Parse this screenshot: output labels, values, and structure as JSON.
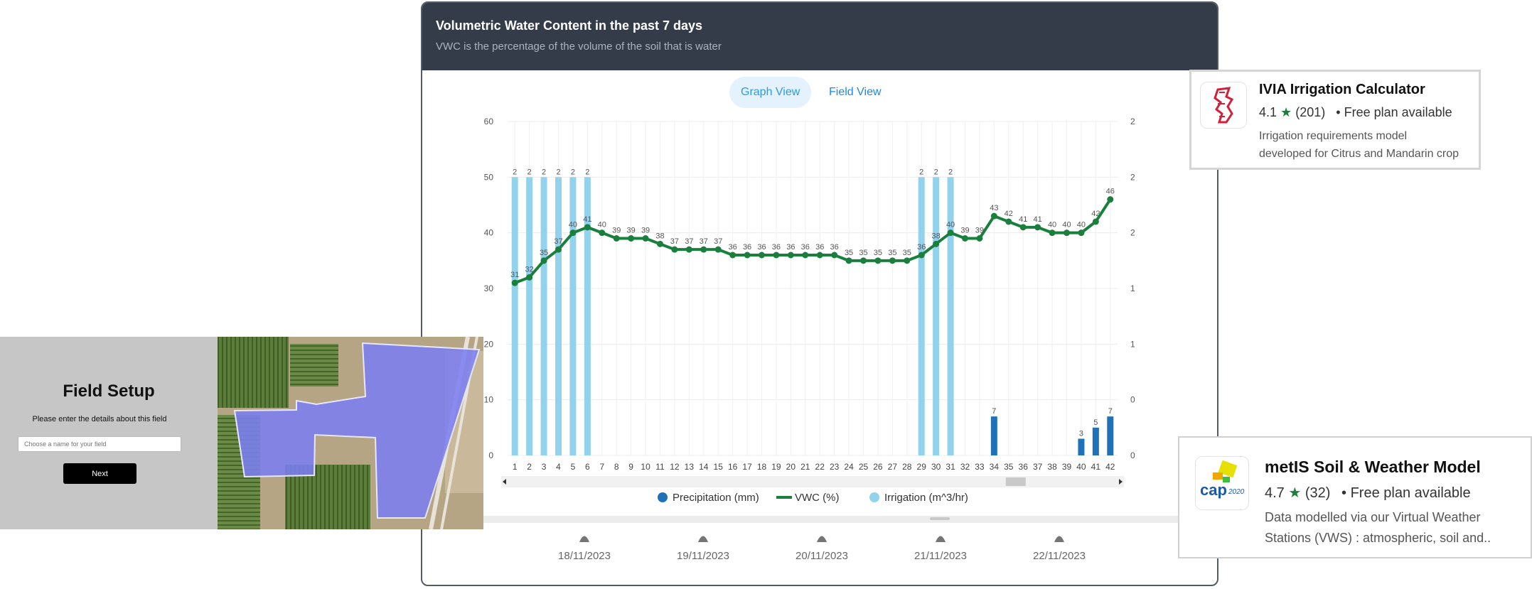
{
  "chart_panel": {
    "title": "Volumetric Water Content in the past 7 days",
    "subtitle": "VWC is the percentage of the volume of the soil that is water",
    "tabs": {
      "graph": "Graph View",
      "field": "Field View"
    }
  },
  "colors": {
    "header_bg": "#333c48",
    "vwc": "#1a7f3c",
    "irrigation": "#93d2ec",
    "precipitation": "#1f72b8"
  },
  "chart_data": {
    "type": "bar+line",
    "categories": [
      "1",
      "2",
      "3",
      "4",
      "5",
      "6",
      "7",
      "8",
      "9",
      "10",
      "11",
      "12",
      "13",
      "14",
      "15",
      "16",
      "17",
      "18",
      "19",
      "20",
      "21",
      "22",
      "23",
      "24",
      "25",
      "26",
      "27",
      "28",
      "29",
      "30",
      "31",
      "32",
      "33",
      "34",
      "35",
      "36",
      "37",
      "38",
      "39",
      "40",
      "41",
      "42"
    ],
    "y_left": {
      "ylim": [
        0,
        60
      ],
      "ticks": [
        "0",
        "10",
        "20",
        "30",
        "40",
        "50",
        "60"
      ]
    },
    "y_right": {
      "ylim": [
        0,
        2.5
      ],
      "ticks": [
        "0",
        "0",
        "1",
        "1",
        "2",
        "2",
        "2"
      ]
    },
    "series": [
      {
        "name": "Precipitation (mm)",
        "type": "bar",
        "values": [
          null,
          null,
          null,
          null,
          null,
          null,
          null,
          null,
          null,
          null,
          null,
          null,
          null,
          null,
          null,
          null,
          null,
          null,
          null,
          null,
          null,
          null,
          null,
          null,
          null,
          null,
          null,
          null,
          null,
          null,
          null,
          null,
          null,
          7,
          null,
          null,
          null,
          null,
          null,
          3,
          5,
          7
        ]
      },
      {
        "name": "VWC (%)",
        "type": "line",
        "values": [
          31,
          32,
          35,
          37,
          40,
          41,
          40,
          39,
          39,
          39,
          38,
          37,
          37,
          37,
          37,
          36,
          36,
          36,
          36,
          36,
          36,
          36,
          36,
          35,
          35,
          35,
          35,
          35,
          36,
          38,
          40,
          39,
          39,
          43,
          42,
          41,
          41,
          40,
          40,
          40,
          42,
          46
        ]
      },
      {
        "name": "Irrigation (m^3/hr)",
        "type": "bar",
        "values": [
          2,
          2,
          2,
          2,
          2,
          2,
          null,
          null,
          null,
          null,
          null,
          null,
          null,
          null,
          null,
          null,
          null,
          null,
          null,
          null,
          null,
          null,
          null,
          null,
          null,
          null,
          null,
          null,
          2,
          2,
          2,
          null,
          null,
          null,
          null,
          null,
          null,
          null,
          null,
          null,
          null,
          null
        ]
      }
    ],
    "legend": [
      "Precipitation (mm)",
      "VWC (%)",
      "Irrigation (m^3/hr)"
    ],
    "legend_position": "bottom",
    "grid": true
  },
  "timeline": {
    "dates": [
      "18/11/2023",
      "19/11/2023",
      "20/11/2023",
      "21/11/2023",
      "22/11/2023"
    ]
  },
  "field_setup": {
    "title": "Field Setup",
    "description": "Please enter the details about this field",
    "input_placeholder": "Choose a name for your field",
    "next_label": "Next"
  },
  "apps": [
    {
      "name": "IVIA Irrigation Calculator",
      "rating": "4.1",
      "reviews": "(201)",
      "plan": "Free plan available",
      "description_line1": "Irrigation requirements model",
      "description_line2": "developed for Citrus and Mandarin crop"
    },
    {
      "name": "metIS Soil & Weather Model",
      "rating": "4.7",
      "reviews": "(32)",
      "plan": "Free plan available",
      "description_line1": "Data modelled via our Virtual Weather",
      "description_line2": "Stations (VWS) : atmospheric, soil and..",
      "logo_text": "cap",
      "logo_year": "2020"
    }
  ]
}
